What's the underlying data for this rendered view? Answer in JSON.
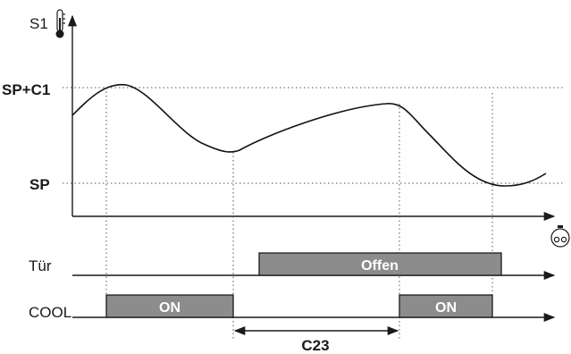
{
  "chart": {
    "y_label": "S1",
    "levels": {
      "upper": "SP+C1",
      "lower": "SP"
    },
    "rows": [
      {
        "label": "Tür",
        "bars": [
          {
            "text": "Offen"
          }
        ]
      },
      {
        "label": "COOL",
        "bars": [
          {
            "text": "ON"
          },
          {
            "text": "ON"
          }
        ]
      }
    ],
    "delay_label": "C23",
    "icons": {
      "y_axis": "thermometer-icon",
      "time_axis": "stopwatch-icon"
    }
  }
}
